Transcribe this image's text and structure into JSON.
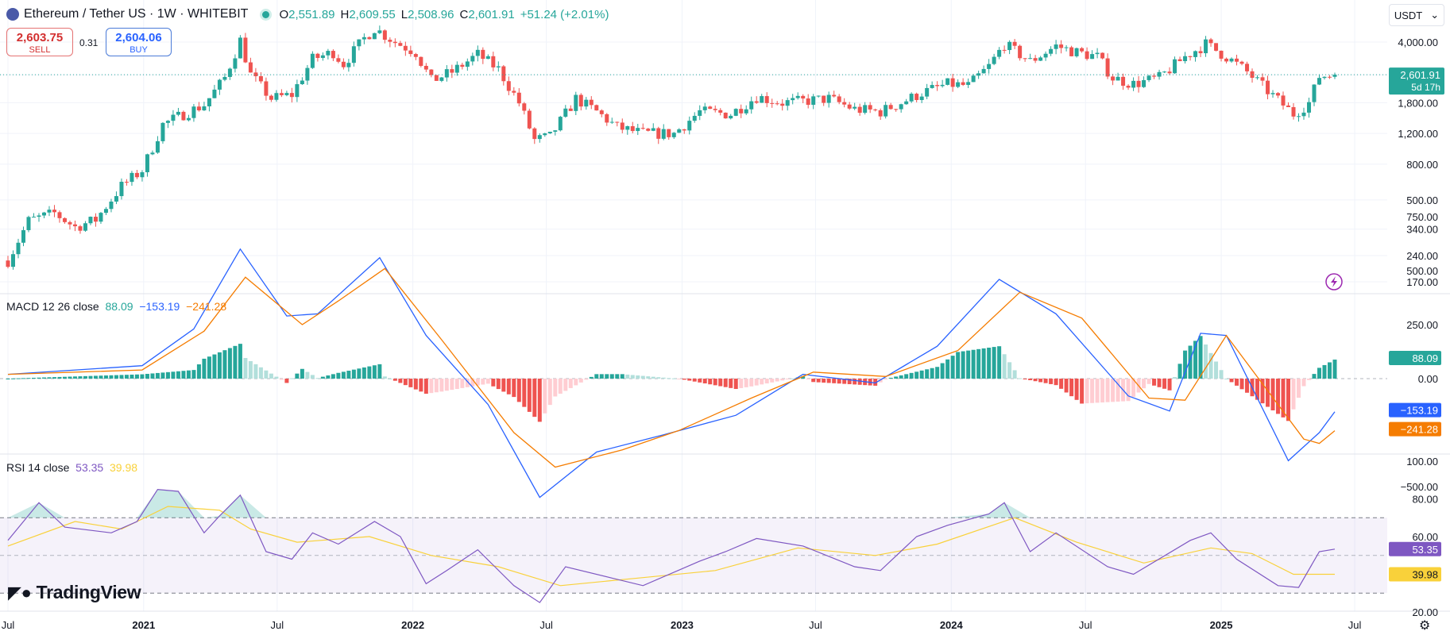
{
  "header": {
    "title": "Ethereum / Tether US · 1W · WHITEBIT",
    "ohlc": [
      {
        "k": "O",
        "v": "2,551.89"
      },
      {
        "k": "H",
        "v": "2,609.55"
      },
      {
        "k": "L",
        "v": "2,508.96"
      },
      {
        "k": "C",
        "v": "2,601.91"
      }
    ],
    "change": "+51.24 (+2.01%)"
  },
  "trade": {
    "sell_price": "2,603.75",
    "sell_label": "SELL",
    "spread": "0.31",
    "buy_price": "2,604.06",
    "buy_label": "BUY"
  },
  "currency": "USDT",
  "colors": {
    "up": "#26a69a",
    "down": "#ef5350",
    "macd": "#2962ff",
    "signal": "#f57c00",
    "rsi": "#7e57c2",
    "rsi_ma": "#f9d13a"
  },
  "icons": [
    "ethereum-logo-icon",
    "live-dot-icon",
    "chevron-down-icon",
    "lightning-icon",
    "gear-icon",
    "tradingview-logo-icon"
  ],
  "macd_title": {
    "label": "MACD 12 26 close",
    "v1": "88.09",
    "v2": "−153.19",
    "v3": "−241.28"
  },
  "rsi_title": {
    "label": "RSI 14 close",
    "v1": "53.35",
    "v2": "39.98"
  },
  "logo_text": "TradingView",
  "chart_data": [
    {
      "type": "candlestick",
      "title": "Ethereum / Tether US · 1W · WHITEBIT",
      "scale": "log",
      "ylim": [
        150,
        5000
      ],
      "y_ticks": [
        "4,000.00",
        "2,600.00",
        "1,800.00",
        "1,200.00",
        "800.00",
        "500.00",
        "340.00",
        "240.00",
        "170.00"
      ],
      "y_tick_values": [
        4000,
        2600,
        1800,
        1200,
        800,
        500,
        340,
        240,
        170
      ],
      "x_ticks": [
        "Jul",
        "2021",
        "Jul",
        "2022",
        "Jul",
        "2023",
        "Jul",
        "2024",
        "Jul",
        "2025",
        "Jul"
      ],
      "x_tick_dates": [
        "2020-07-01",
        "2021-01-01",
        "2021-07-01",
        "2022-01-01",
        "2022-07-01",
        "2023-01-01",
        "2023-07-01",
        "2024-01-01",
        "2024-07-01",
        "2025-01-01",
        "2025-07-01"
      ],
      "series_path": [
        [
          "2020-07-01",
          225
        ],
        [
          "2020-07-29",
          380
        ],
        [
          "2020-09-02",
          420
        ],
        [
          "2020-09-30",
          350
        ],
        [
          "2020-10-28",
          385
        ],
        [
          "2020-12-02",
          600
        ],
        [
          "2020-12-30",
          740
        ],
        [
          "2021-01-27",
          1350
        ],
        [
          "2021-02-24",
          1550
        ],
        [
          "2021-03-24",
          1750
        ],
        [
          "2021-04-21",
          2500
        ],
        [
          "2021-05-12",
          4100
        ],
        [
          "2021-05-26",
          2600
        ],
        [
          "2021-06-23",
          1900
        ],
        [
          "2021-07-21",
          2000
        ],
        [
          "2021-08-18",
          3200
        ],
        [
          "2021-09-15",
          3500
        ],
        [
          "2021-09-29",
          3000
        ],
        [
          "2021-10-27",
          4200
        ],
        [
          "2021-11-10",
          4800
        ],
        [
          "2021-12-08",
          4000
        ],
        [
          "2022-01-05",
          3500
        ],
        [
          "2022-01-26",
          2400
        ],
        [
          "2022-02-23",
          2700
        ],
        [
          "2022-03-30",
          3400
        ],
        [
          "2022-04-27",
          2800
        ],
        [
          "2022-05-25",
          1800
        ],
        [
          "2022-06-15",
          1100
        ],
        [
          "2022-07-06",
          1150
        ],
        [
          "2022-08-10",
          1900
        ],
        [
          "2022-09-07",
          1600
        ],
        [
          "2022-10-05",
          1300
        ],
        [
          "2022-11-09",
          1200
        ],
        [
          "2022-12-21",
          1200
        ],
        [
          "2023-01-25",
          1600
        ],
        [
          "2023-03-08",
          1550
        ],
        [
          "2023-04-12",
          1950
        ],
        [
          "2023-05-17",
          1800
        ],
        [
          "2023-06-21",
          1850
        ],
        [
          "2023-07-19",
          1900
        ],
        [
          "2023-08-23",
          1650
        ],
        [
          "2023-09-27",
          1600
        ],
        [
          "2023-10-25",
          1800
        ],
        [
          "2023-11-22",
          2050
        ],
        [
          "2023-12-27",
          2300
        ],
        [
          "2024-01-24",
          2250
        ],
        [
          "2024-02-21",
          2900
        ],
        [
          "2024-03-13",
          3900
        ],
        [
          "2024-04-17",
          3100
        ],
        [
          "2024-05-22",
          3800
        ],
        [
          "2024-06-19",
          3500
        ],
        [
          "2024-07-17",
          3300
        ],
        [
          "2024-08-07",
          2500
        ],
        [
          "2024-09-04",
          2300
        ],
        [
          "2024-10-09",
          2500
        ],
        [
          "2024-11-13",
          3300
        ],
        [
          "2024-12-11",
          3900
        ],
        [
          "2025-01-08",
          3300
        ],
        [
          "2025-02-05",
          2700
        ],
        [
          "2025-03-05",
          2100
        ],
        [
          "2025-04-09",
          1550
        ],
        [
          "2025-04-30",
          1800
        ],
        [
          "2025-05-14",
          2550
        ],
        [
          "2025-06-04",
          2601.91
        ]
      ],
      "last_price": "2,601.91",
      "countdown": "5d 17h"
    },
    {
      "type": "line",
      "title": "MACD 12 26 close",
      "ylim": [
        -650,
        800
      ],
      "y_ticks": [
        "750.00",
        "500.00",
        "250.00",
        "0.00",
        "−500.00"
      ],
      "y_tick_values": [
        750,
        500,
        250,
        0,
        -500
      ],
      "series": [
        {
          "name": "MACD",
          "points": [
            [
              "2020-07-01",
              20
            ],
            [
              "2020-12-30",
              60
            ],
            [
              "2021-03-10",
              230
            ],
            [
              "2021-05-12",
              600
            ],
            [
              "2021-07-14",
              290
            ],
            [
              "2021-08-25",
              300
            ],
            [
              "2021-11-17",
              560
            ],
            [
              "2022-01-19",
              200
            ],
            [
              "2022-04-13",
              -120
            ],
            [
              "2022-06-22",
              -550
            ],
            [
              "2022-09-07",
              -340
            ],
            [
              "2022-12-07",
              -260
            ],
            [
              "2023-03-15",
              -170
            ],
            [
              "2023-06-14",
              20
            ],
            [
              "2023-09-20",
              -20
            ],
            [
              "2023-12-13",
              150
            ],
            [
              "2024-03-06",
              460
            ],
            [
              "2024-05-22",
              300
            ],
            [
              "2024-08-28",
              -80
            ],
            [
              "2024-10-23",
              -150
            ],
            [
              "2024-12-04",
              210
            ],
            [
              "2025-01-08",
              200
            ],
            [
              "2025-04-02",
              -380
            ],
            [
              "2025-05-14",
              -250
            ],
            [
              "2025-06-04",
              -153.19
            ]
          ]
        },
        {
          "name": "Signal",
          "points": [
            [
              "2020-07-01",
              20
            ],
            [
              "2020-12-30",
              40
            ],
            [
              "2021-03-24",
              220
            ],
            [
              "2021-05-19",
              470
            ],
            [
              "2021-08-04",
              250
            ],
            [
              "2021-09-22",
              360
            ],
            [
              "2021-11-24",
              510
            ],
            [
              "2022-02-09",
              180
            ],
            [
              "2022-05-18",
              -250
            ],
            [
              "2022-07-13",
              -410
            ],
            [
              "2022-10-12",
              -330
            ],
            [
              "2022-12-28",
              -240
            ],
            [
              "2023-04-05",
              -90
            ],
            [
              "2023-06-28",
              30
            ],
            [
              "2023-10-04",
              10
            ],
            [
              "2024-01-10",
              130
            ],
            [
              "2024-04-03",
              400
            ],
            [
              "2024-06-26",
              280
            ],
            [
              "2024-09-25",
              -90
            ],
            [
              "2024-11-13",
              -100
            ],
            [
              "2025-01-08",
              200
            ],
            [
              "2025-04-23",
              -280
            ],
            [
              "2025-05-14",
              -300
            ],
            [
              "2025-06-04",
              -241.28
            ]
          ]
        }
      ],
      "last_values": {
        "histogram": "88.09",
        "macd": "−153.19",
        "signal": "−241.28"
      }
    },
    {
      "type": "line",
      "title": "RSI 14 close",
      "ylim": [
        20,
        100
      ],
      "y_ticks": [
        "100.00",
        "80.00",
        "60.00",
        "40.00",
        "20.00"
      ],
      "y_tick_values": [
        100,
        80,
        60,
        40,
        20
      ],
      "band": [
        30,
        70
      ],
      "series": [
        {
          "name": "RSI",
          "points": [
            [
              "2020-07-01",
              58
            ],
            [
              "2020-08-12",
              78
            ],
            [
              "2020-09-16",
              65
            ],
            [
              "2020-11-18",
              62
            ],
            [
              "2020-12-23",
              68
            ],
            [
              "2021-01-20",
              85
            ],
            [
              "2021-02-17",
              84
            ],
            [
              "2021-03-24",
              62
            ],
            [
              "2021-04-14",
              71
            ],
            [
              "2021-05-12",
              82
            ],
            [
              "2021-06-16",
              52
            ],
            [
              "2021-07-21",
              48
            ],
            [
              "2021-08-18",
              62
            ],
            [
              "2021-09-22",
              56
            ],
            [
              "2021-11-10",
              68
            ],
            [
              "2021-12-15",
              60
            ],
            [
              "2022-01-19",
              35
            ],
            [
              "2022-02-16",
              42
            ],
            [
              "2022-03-30",
              53
            ],
            [
              "2022-05-18",
              34
            ],
            [
              "2022-06-22",
              25
            ],
            [
              "2022-07-27",
              44
            ],
            [
              "2022-09-28",
              38
            ],
            [
              "2022-11-09",
              34
            ],
            [
              "2023-01-25",
              47
            ],
            [
              "2023-03-01",
              52
            ],
            [
              "2023-04-12",
              59
            ],
            [
              "2023-06-14",
              55
            ],
            [
              "2023-08-23",
              44
            ],
            [
              "2023-09-27",
              42
            ],
            [
              "2023-11-15",
              60
            ],
            [
              "2023-12-27",
              66
            ],
            [
              "2024-02-21",
              72
            ],
            [
              "2024-03-13",
              78
            ],
            [
              "2024-04-17",
              52
            ],
            [
              "2024-05-22",
              62
            ],
            [
              "2024-07-31",
              44
            ],
            [
              "2024-09-04",
              40
            ],
            [
              "2024-11-20",
              58
            ],
            [
              "2024-12-18",
              62
            ],
            [
              "2025-01-22",
              48
            ],
            [
              "2025-03-19",
              34
            ],
            [
              "2025-04-16",
              33
            ],
            [
              "2025-05-14",
              52
            ],
            [
              "2025-06-04",
              53.35
            ]
          ]
        },
        {
          "name": "RSI MA",
          "points": [
            [
              "2020-07-01",
              55
            ],
            [
              "2020-09-30",
              68
            ],
            [
              "2020-12-02",
              64
            ],
            [
              "2021-02-03",
              76
            ],
            [
              "2021-04-14",
              74
            ],
            [
              "2021-05-26",
              64
            ],
            [
              "2021-07-28",
              57
            ],
            [
              "2021-11-03",
              60
            ],
            [
              "2022-01-26",
              50
            ],
            [
              "2022-04-27",
              44
            ],
            [
              "2022-07-20",
              34
            ],
            [
              "2022-11-02",
              38
            ],
            [
              "2023-02-15",
              42
            ],
            [
              "2023-06-07",
              54
            ],
            [
              "2023-09-20",
              50
            ],
            [
              "2023-12-13",
              56
            ],
            [
              "2024-03-27",
              70
            ],
            [
              "2024-06-19",
              57
            ],
            [
              "2024-09-18",
              46
            ],
            [
              "2024-12-18",
              54
            ],
            [
              "2025-02-12",
              51
            ],
            [
              "2025-04-09",
              40
            ],
            [
              "2025-06-04",
              39.98
            ]
          ]
        }
      ],
      "last_values": {
        "rsi": "53.35",
        "rsi_ma": "39.98"
      }
    }
  ]
}
